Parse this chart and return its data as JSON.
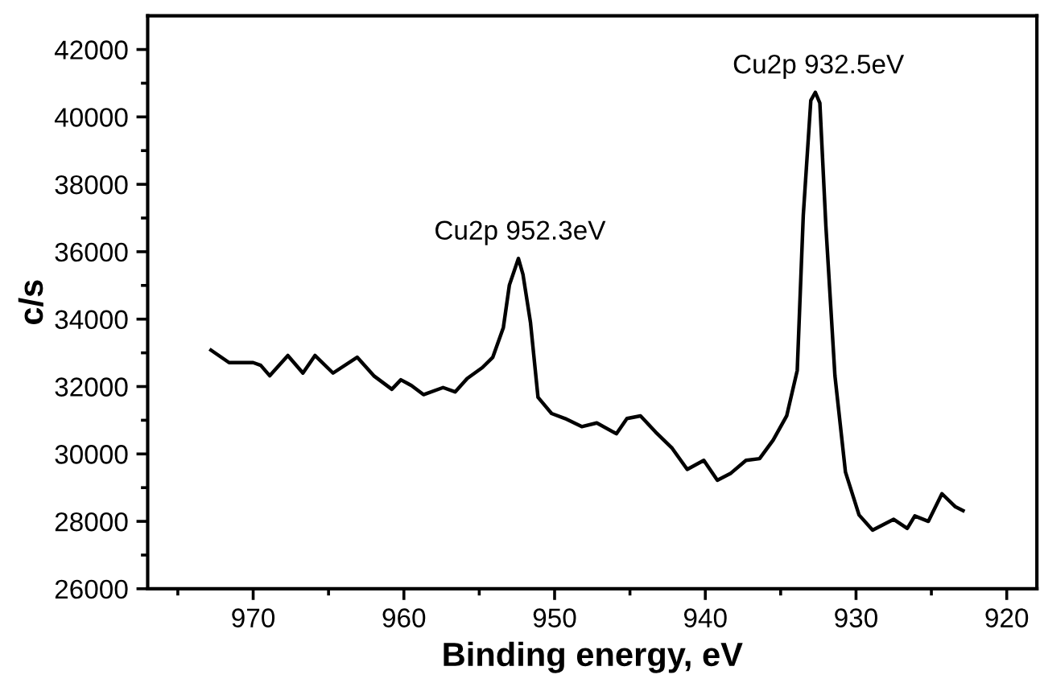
{
  "chart_data": {
    "type": "line",
    "xlabel": "Binding energy, eV",
    "ylabel": "c/s",
    "xlim": [
      977,
      918
    ],
    "ylim": [
      26000,
      43000
    ],
    "xticks": [
      {
        "value": 975,
        "label": null
      },
      970,
      {
        "value": 965,
        "label": null
      },
      960,
      {
        "value": 955,
        "label": null
      },
      950,
      {
        "value": 945,
        "label": null
      },
      940,
      {
        "value": 935,
        "label": null
      },
      930,
      {
        "value": 925,
        "label": null
      },
      920
    ],
    "yticks": [
      26000,
      {
        "value": 27000,
        "label": null
      },
      28000,
      {
        "value": 29000,
        "label": null
      },
      30000,
      {
        "value": 31000,
        "label": null
      },
      32000,
      {
        "value": 33000,
        "label": null
      },
      34000,
      {
        "value": 35000,
        "label": null
      },
      36000,
      {
        "value": 37000,
        "label": null
      },
      38000,
      {
        "value": 39000,
        "label": null
      },
      40000,
      {
        "value": 41000,
        "label": null
      },
      42000
    ],
    "grid": false,
    "marker": "none",
    "line_style": "solid",
    "annotations": [
      {
        "text": "Cu2p 952.3eV",
        "x": 952.3,
        "y": 35800
      },
      {
        "text": "Cu2p 932.5eV",
        "x": 932.5,
        "y": 40730
      }
    ],
    "series": [
      {
        "color": "#000000",
        "x": [
          972.8,
          971.6,
          970.0,
          969.5,
          968.9,
          967.7,
          966.7,
          965.9,
          964.7,
          963.1,
          962.0,
          960.8,
          960.2,
          959.5,
          958.7,
          957.4,
          956.6,
          955.8,
          954.8,
          954.1,
          953.4,
          953.0,
          952.4,
          952.1,
          951.6,
          951.1,
          950.2,
          949.3,
          948.2,
          947.2,
          945.9,
          945.2,
          944.3,
          943.3,
          942.2,
          941.2,
          940.1,
          939.2,
          938.3,
          937.3,
          936.4,
          935.5,
          934.6,
          933.9,
          933.5,
          933.0,
          932.7,
          932.4,
          932.0,
          931.4,
          930.7,
          929.8,
          928.9,
          927.5,
          926.6,
          926.1,
          925.2,
          924.3,
          923.4,
          922.9
        ],
        "values": [
          33080,
          32710,
          32710,
          32630,
          32320,
          32920,
          32400,
          32920,
          32400,
          32870,
          32320,
          31920,
          32200,
          32030,
          31760,
          31970,
          31840,
          32240,
          32560,
          32870,
          33750,
          35010,
          35800,
          35330,
          33900,
          31680,
          31200,
          31050,
          30810,
          30920,
          30600,
          31050,
          31130,
          30650,
          30170,
          29540,
          29810,
          29220,
          29430,
          29810,
          29860,
          30410,
          31130,
          32480,
          37080,
          40490,
          40730,
          40410,
          36760,
          32320,
          29460,
          28190,
          27740,
          28060,
          27790,
          28160,
          28000,
          28820,
          28430,
          28320
        ]
      }
    ]
  }
}
